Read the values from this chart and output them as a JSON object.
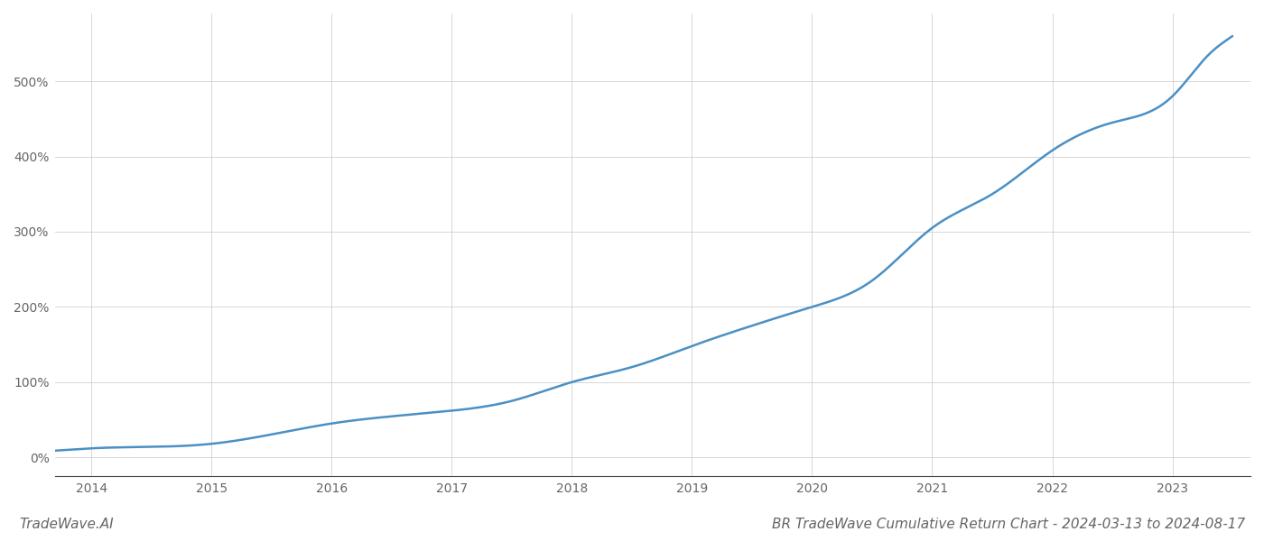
{
  "title": "BR TradeWave Cumulative Return Chart - 2024-03-13 to 2024-08-17",
  "watermark": "TradeWave.AI",
  "line_color": "#4a90c4",
  "background_color": "#ffffff",
  "grid_color": "#cccccc",
  "key_x": [
    2013.8,
    2014.0,
    2015.0,
    2016.0,
    2017.0,
    2017.5,
    2018.0,
    2018.5,
    2019.0,
    2019.5,
    2020.0,
    2020.5,
    2021.0,
    2021.5,
    2022.0,
    2022.5,
    2023.0,
    2023.3,
    2023.5
  ],
  "key_y": [
    10,
    12,
    18,
    45,
    62,
    75,
    100,
    120,
    148,
    175,
    200,
    235,
    305,
    350,
    408,
    445,
    480,
    535,
    560
  ],
  "x_years": [
    2014,
    2015,
    2016,
    2017,
    2018,
    2019,
    2020,
    2021,
    2022,
    2023
  ],
  "ytick_values": [
    0,
    100,
    200,
    300,
    400,
    500
  ],
  "ytick_labels": [
    "0%",
    "100%",
    "200%",
    "300%",
    "400%",
    "500%"
  ],
  "xlim": [
    2013.7,
    2023.65
  ],
  "ylim": [
    -25,
    590
  ],
  "title_fontsize": 11,
  "axis_fontsize": 10,
  "watermark_fontsize": 11,
  "line_width": 1.8
}
